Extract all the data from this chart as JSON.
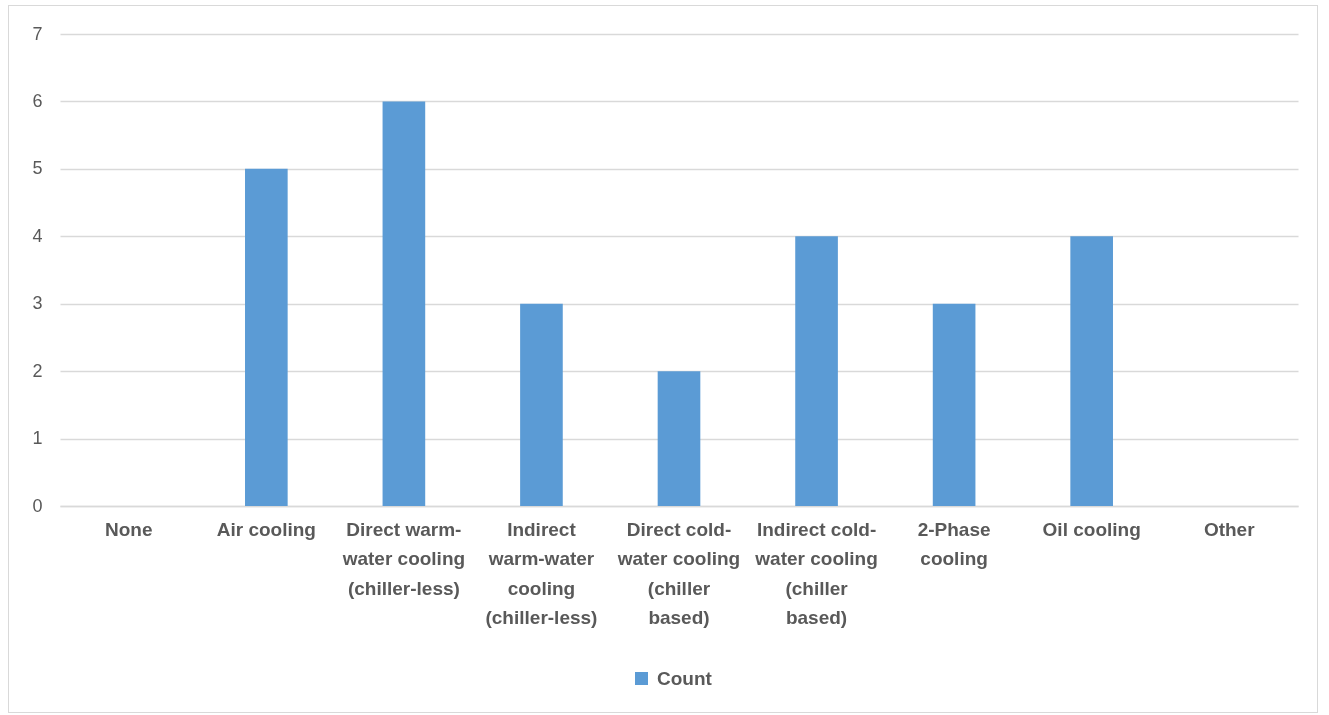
{
  "chart_data": {
    "type": "bar",
    "categories": [
      "None",
      "Air cooling",
      "Direct warm-water cooling (chiller-less)",
      "Indirect warm-water cooling (chiller-less)",
      "Direct cold-water cooling (chiller based)",
      "Indirect cold-water cooling (chiller based)",
      "2-Phase cooling",
      "Oil cooling",
      "Other"
    ],
    "series": [
      {
        "name": "Count",
        "color": "#5b9bd5",
        "values": [
          0,
          5,
          6,
          3,
          2,
          4,
          3,
          4,
          0
        ]
      }
    ],
    "ylim": [
      0,
      7
    ],
    "yticks": [
      0,
      1,
      2,
      3,
      4,
      5,
      6,
      7
    ],
    "grid": "y",
    "legend": "bottom"
  }
}
